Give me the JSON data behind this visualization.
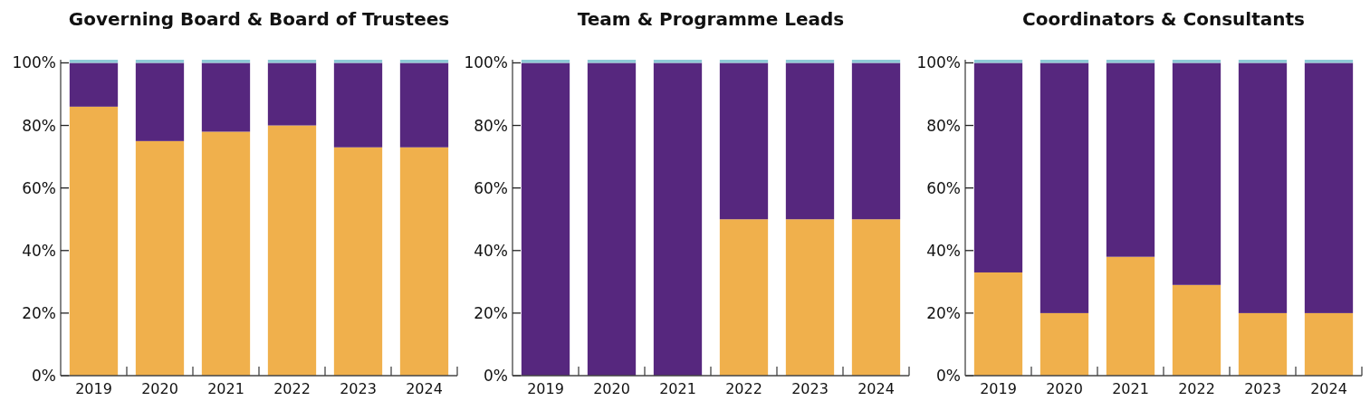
{
  "chart_data": [
    {
      "type": "bar",
      "title": "Governing Board & Board of Trustees",
      "categories": [
        "2019",
        "2020",
        "2021",
        "2022",
        "2023",
        "2024"
      ],
      "stacked": true,
      "ylim": [
        0,
        101
      ],
      "yticks": [
        {
          "value": 0,
          "label": "0%"
        },
        {
          "value": 20,
          "label": "20%"
        },
        {
          "value": 40,
          "label": "40%"
        },
        {
          "value": 60,
          "label": "60%"
        },
        {
          "value": 80,
          "label": "80%"
        },
        {
          "value": 100,
          "label": "100%"
        }
      ],
      "grid": false,
      "series": [
        {
          "color": "#f0b04c",
          "values": [
            86,
            75,
            78,
            80,
            73,
            73
          ]
        },
        {
          "color": "#56277e",
          "values": [
            14,
            25,
            22,
            20,
            27,
            27
          ]
        },
        {
          "color": "#8ecad6",
          "values": [
            1,
            1,
            1,
            1,
            1,
            1
          ]
        }
      ]
    },
    {
      "type": "bar",
      "title": "Team & Programme Leads",
      "categories": [
        "2019",
        "2020",
        "2021",
        "2022",
        "2023",
        "2024"
      ],
      "stacked": true,
      "ylim": [
        0,
        101
      ],
      "yticks": [
        {
          "value": 0,
          "label": "0%"
        },
        {
          "value": 20,
          "label": "20%"
        },
        {
          "value": 40,
          "label": "40%"
        },
        {
          "value": 60,
          "label": "60%"
        },
        {
          "value": 80,
          "label": "80%"
        },
        {
          "value": 100,
          "label": "100%"
        }
      ],
      "grid": false,
      "series": [
        {
          "color": "#f0b04c",
          "values": [
            0,
            0,
            0,
            50,
            50,
            50
          ]
        },
        {
          "color": "#56277e",
          "values": [
            100,
            100,
            100,
            50,
            50,
            50
          ]
        },
        {
          "color": "#8ecad6",
          "values": [
            1,
            1,
            1,
            1,
            1,
            1
          ]
        }
      ]
    },
    {
      "type": "bar",
      "title": "Coordinators & Consultants",
      "categories": [
        "2019",
        "2020",
        "2021",
        "2022",
        "2023",
        "2024"
      ],
      "stacked": true,
      "ylim": [
        0,
        101
      ],
      "yticks": [
        {
          "value": 0,
          "label": "0%"
        },
        {
          "value": 20,
          "label": "20%"
        },
        {
          "value": 40,
          "label": "40%"
        },
        {
          "value": 60,
          "label": "60%"
        },
        {
          "value": 80,
          "label": "80%"
        },
        {
          "value": 100,
          "label": "100%"
        }
      ],
      "grid": false,
      "series": [
        {
          "color": "#f0b04c",
          "values": [
            33,
            20,
            38,
            29,
            20,
            20
          ]
        },
        {
          "color": "#56277e",
          "values": [
            67,
            80,
            62,
            71,
            80,
            80
          ]
        },
        {
          "color": "#8ecad6",
          "values": [
            1,
            1,
            1,
            1,
            1,
            1
          ]
        }
      ]
    }
  ]
}
